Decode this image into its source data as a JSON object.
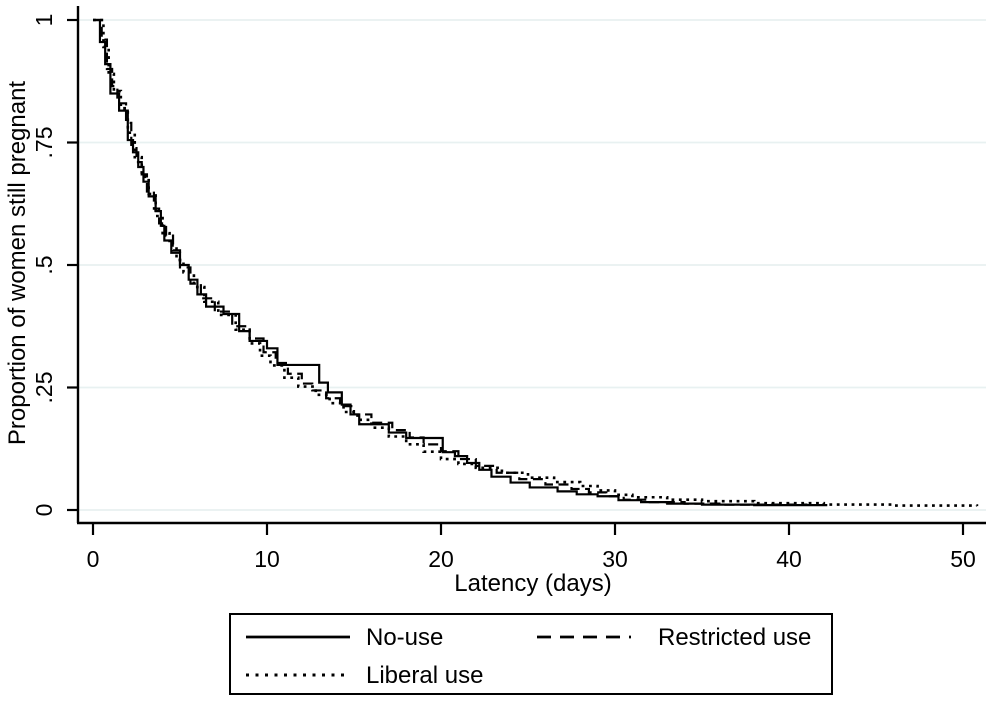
{
  "figure": {
    "background_color": "#ffffff",
    "line_color": "#000000",
    "gridline_color": "#e8f1f1",
    "text_color": "#000000"
  },
  "chart_data": {
    "type": "line",
    "subtype": "kaplan-meier-survival-steps",
    "title": "",
    "xlabel": "Latency (days)",
    "ylabel": "Proportion of women still pregnant",
    "xlim": [
      -1,
      51.5
    ],
    "ylim": [
      0,
      1
    ],
    "x_ticks": [
      0,
      10,
      20,
      30,
      40,
      50
    ],
    "x_tick_labels": [
      "0",
      "10",
      "20",
      "30",
      "40",
      "50"
    ],
    "y_ticks": [
      0,
      0.25,
      0.5,
      0.75,
      1
    ],
    "y_tick_labels": [
      "0",
      ".25",
      ".5",
      ".75",
      "1"
    ],
    "grid": true,
    "legend_position": "bottom-center",
    "series": [
      {
        "name": "No-use",
        "style": "solid",
        "points": [
          [
            0,
            1
          ],
          [
            0.4,
            0.955
          ],
          [
            0.7,
            0.91
          ],
          [
            1.0,
            0.85
          ],
          [
            1.5,
            0.815
          ],
          [
            2.0,
            0.755
          ],
          [
            2.3,
            0.73
          ],
          [
            2.6,
            0.7
          ],
          [
            2.9,
            0.67
          ],
          [
            3.2,
            0.64
          ],
          [
            3.6,
            0.61
          ],
          [
            3.9,
            0.58
          ],
          [
            4.1,
            0.55
          ],
          [
            4.5,
            0.525
          ],
          [
            5.0,
            0.5
          ],
          [
            5.5,
            0.47
          ],
          [
            6.0,
            0.44
          ],
          [
            6.5,
            0.415
          ],
          [
            7.5,
            0.4
          ],
          [
            8.4,
            0.365
          ],
          [
            9.0,
            0.345
          ],
          [
            10.0,
            0.33
          ],
          [
            10.6,
            0.296
          ],
          [
            13.0,
            0.26
          ],
          [
            13.5,
            0.24
          ],
          [
            14.3,
            0.215
          ],
          [
            14.8,
            0.195
          ],
          [
            15.3,
            0.175
          ],
          [
            17.0,
            0.158
          ],
          [
            18.0,
            0.147
          ],
          [
            20.1,
            0.118
          ],
          [
            20.8,
            0.11
          ],
          [
            21.5,
            0.096
          ],
          [
            22.2,
            0.082
          ],
          [
            22.9,
            0.068
          ],
          [
            24.0,
            0.056
          ],
          [
            25.1,
            0.046
          ],
          [
            26.7,
            0.038
          ],
          [
            27.8,
            0.032
          ],
          [
            29.0,
            0.028
          ],
          [
            30.2,
            0.02
          ],
          [
            31.5,
            0.016
          ],
          [
            33.0,
            0.013
          ],
          [
            35.0,
            0.011
          ],
          [
            38.0,
            0.01
          ],
          [
            42.2,
            0.01
          ]
        ]
      },
      {
        "name": "Restricted use",
        "style": "dashed",
        "points": [
          [
            0,
            1
          ],
          [
            0.5,
            0.96
          ],
          [
            0.8,
            0.9
          ],
          [
            1.1,
            0.865
          ],
          [
            1.4,
            0.83
          ],
          [
            1.9,
            0.79
          ],
          [
            2.2,
            0.745
          ],
          [
            2.5,
            0.71
          ],
          [
            2.8,
            0.685
          ],
          [
            3.1,
            0.65
          ],
          [
            3.5,
            0.615
          ],
          [
            3.8,
            0.585
          ],
          [
            4.2,
            0.56
          ],
          [
            4.6,
            0.53
          ],
          [
            5.0,
            0.495
          ],
          [
            5.6,
            0.462
          ],
          [
            6.2,
            0.432
          ],
          [
            7.0,
            0.405
          ],
          [
            8.0,
            0.375
          ],
          [
            9.0,
            0.35
          ],
          [
            9.8,
            0.322
          ],
          [
            10.5,
            0.3
          ],
          [
            11.2,
            0.278
          ],
          [
            12.0,
            0.258
          ],
          [
            12.6,
            0.244
          ],
          [
            13.4,
            0.228
          ],
          [
            14.2,
            0.212
          ],
          [
            15.0,
            0.195
          ],
          [
            16.0,
            0.178
          ],
          [
            17.2,
            0.163
          ],
          [
            18.2,
            0.148
          ],
          [
            19.0,
            0.134
          ],
          [
            20.0,
            0.12
          ],
          [
            21.0,
            0.104
          ],
          [
            22.0,
            0.09
          ],
          [
            23.2,
            0.076
          ],
          [
            24.5,
            0.063
          ],
          [
            26.0,
            0.052
          ],
          [
            27.5,
            0.043
          ],
          [
            28.5,
            0.036
          ],
          [
            29.5,
            0.028
          ],
          [
            30.5,
            0.021
          ],
          [
            32.0,
            0.016
          ],
          [
            34.0,
            0.013
          ],
          [
            36.0,
            0.011
          ],
          [
            41.0,
            0.01
          ]
        ]
      },
      {
        "name": "Liberal use",
        "style": "dotted",
        "points": [
          [
            0,
            1
          ],
          [
            0.6,
            0.945
          ],
          [
            0.9,
            0.89
          ],
          [
            1.2,
            0.855
          ],
          [
            1.6,
            0.82
          ],
          [
            2.0,
            0.77
          ],
          [
            2.4,
            0.72
          ],
          [
            2.8,
            0.68
          ],
          [
            3.2,
            0.645
          ],
          [
            3.6,
            0.6
          ],
          [
            4.0,
            0.565
          ],
          [
            4.4,
            0.54
          ],
          [
            4.8,
            0.51
          ],
          [
            5.2,
            0.485
          ],
          [
            5.8,
            0.455
          ],
          [
            6.4,
            0.425
          ],
          [
            7.2,
            0.398
          ],
          [
            8.2,
            0.368
          ],
          [
            9.0,
            0.34
          ],
          [
            9.6,
            0.315
          ],
          [
            10.2,
            0.295
          ],
          [
            11.0,
            0.27
          ],
          [
            11.8,
            0.252
          ],
          [
            12.8,
            0.235
          ],
          [
            13.6,
            0.218
          ],
          [
            14.4,
            0.2
          ],
          [
            15.2,
            0.184
          ],
          [
            16.0,
            0.168
          ],
          [
            17.0,
            0.15
          ],
          [
            18.0,
            0.134
          ],
          [
            19.0,
            0.119
          ],
          [
            20.0,
            0.104
          ],
          [
            21.0,
            0.094
          ],
          [
            22.0,
            0.086
          ],
          [
            23.5,
            0.076
          ],
          [
            25.0,
            0.066
          ],
          [
            26.5,
            0.057
          ],
          [
            28.0,
            0.049
          ],
          [
            29.0,
            0.04
          ],
          [
            30.0,
            0.031
          ],
          [
            31.0,
            0.026
          ],
          [
            33.0,
            0.021
          ],
          [
            35.0,
            0.018
          ],
          [
            38.0,
            0.014
          ],
          [
            42.0,
            0.011
          ],
          [
            46.0,
            0.009
          ],
          [
            50.8,
            0.008
          ]
        ]
      }
    ]
  },
  "legend": {
    "items": [
      {
        "label": "No-use",
        "style": "solid"
      },
      {
        "label": "Restricted use",
        "style": "dashed"
      },
      {
        "label": "Liberal use",
        "style": "dotted"
      }
    ]
  }
}
